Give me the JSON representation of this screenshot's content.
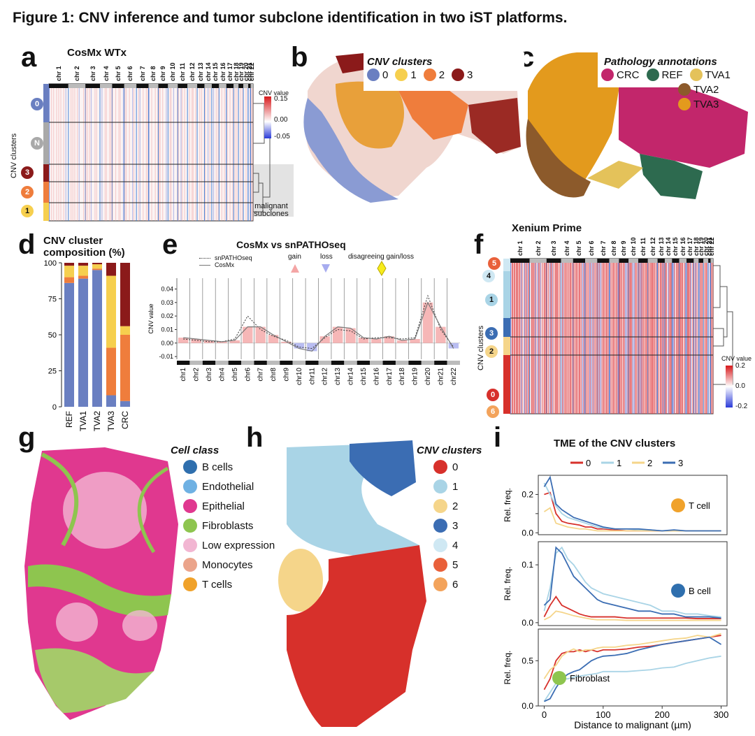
{
  "figure_title": "Figure 1: CNV inference and tumor subclone identification in two iST platforms.",
  "panel_labels": [
    "a",
    "b",
    "c",
    "d",
    "e",
    "f",
    "g",
    "h",
    "i"
  ],
  "panel_a": {
    "title": "CosMx WTx",
    "y_axis_label": "CNV clusters",
    "chromosomes": [
      "chr 1",
      "chr 2",
      "chr 3",
      "chr 4",
      "chr 5",
      "chr 6",
      "chr 7",
      "chr 8",
      "chr 9",
      "chr 10",
      "chr 11",
      "chr 12",
      "chr 13",
      "chr 14",
      "chr 15",
      "chr 16",
      "chr 17",
      "chr 18",
      "chr 19",
      "chr 20",
      "chr 21",
      "chr 22"
    ],
    "row_clusters": [
      {
        "label": "0",
        "color": "#6a7fc1"
      },
      {
        "label": "N",
        "color": "#a9a9a9"
      },
      {
        "label": "3",
        "color": "#8b1a1a"
      },
      {
        "label": "2",
        "color": "#ef7d3c"
      },
      {
        "label": "1",
        "color": "#f6cf4e"
      }
    ],
    "colorbar_title": "CNV value",
    "colorbar_ticks": [
      "0.15",
      "0.00",
      "-0.05"
    ],
    "annotation": "malignant subclones"
  },
  "panel_b": {
    "legend_title": "CNV clusters",
    "legend": [
      {
        "label": "0",
        "color": "#6a7fc1"
      },
      {
        "label": "1",
        "color": "#f6cf4e"
      },
      {
        "label": "2",
        "color": "#ef7d3c"
      },
      {
        "label": "3",
        "color": "#8b1a1a"
      }
    ]
  },
  "panel_c": {
    "legend_title": "Pathology annotations",
    "legend": [
      {
        "label": "CRC",
        "color": "#c2266b"
      },
      {
        "label": "REF",
        "color": "#2d6a4f"
      },
      {
        "label": "TVA1",
        "color": "#e4c25a"
      },
      {
        "label": "TVA2",
        "color": "#8c5a2b"
      },
      {
        "label": "TVA3",
        "color": "#e39a1d"
      }
    ]
  },
  "panel_e": {
    "title": "CosMx vs snPATHOseq",
    "legend_dotted": "snPATHOseq",
    "legend_solid": "CosMx",
    "gain_label": "gain",
    "loss_label": "loss",
    "disagree_label": "disagreeing gain/loss",
    "y_label": "CNV value",
    "chromosomes": [
      "chr1",
      "chr2",
      "chr3",
      "chr4",
      "chr5",
      "chr6",
      "chr7",
      "chr8",
      "chr9",
      "chr10",
      "chr11",
      "chr12",
      "chr13",
      "chr14",
      "chr15",
      "chr16",
      "chr17",
      "chr18",
      "chr19",
      "chr20",
      "chr21",
      "chr22"
    ]
  },
  "panel_f": {
    "title": "Xenium Prime",
    "y_axis_label": "CNV clusters",
    "chromosomes": [
      "chr 1",
      "chr 2",
      "chr 3",
      "chr 4",
      "chr 5",
      "chr 6",
      "chr 7",
      "chr 8",
      "chr 9",
      "chr 10",
      "chr 11",
      "chr 12",
      "chr 13",
      "chr 14",
      "chr 15",
      "chr 16",
      "chr 17",
      "chr 18",
      "chr 19",
      "chr 20",
      "chr 21",
      "chr 22"
    ],
    "row_clusters": [
      {
        "label": "5",
        "color": "#e9603a"
      },
      {
        "label": "4",
        "color": "#cfe8f3"
      },
      {
        "label": "1",
        "color": "#a9d4e6"
      },
      {
        "label": "3",
        "color": "#3b6db3"
      },
      {
        "label": "2",
        "color": "#f5d58a"
      },
      {
        "label": "0",
        "color": "#d7302b"
      },
      {
        "label": "6",
        "color": "#f3a35b"
      }
    ],
    "colorbar_title": "CNV value",
    "colorbar_ticks": [
      "0.2",
      "0.0",
      "-0.2"
    ]
  },
  "panel_g": {
    "legend_title": "Cell class",
    "legend": [
      {
        "label": "B cells",
        "color": "#2f6fae"
      },
      {
        "label": "Endothelial",
        "color": "#6fb1e3"
      },
      {
        "label": "Epithelial",
        "color": "#e0388f"
      },
      {
        "label": "Fibroblasts",
        "color": "#8ec54f"
      },
      {
        "label": "Low expression",
        "color": "#f2b6d2"
      },
      {
        "label": "Monocytes",
        "color": "#eba48b"
      },
      {
        "label": "T cells",
        "color": "#f0a22b"
      }
    ]
  },
  "panel_h": {
    "legend_title": "CNV clusters",
    "legend": [
      {
        "label": "0",
        "color": "#d7302b"
      },
      {
        "label": "1",
        "color": "#a9d4e6"
      },
      {
        "label": "2",
        "color": "#f5d58a"
      },
      {
        "label": "3",
        "color": "#3b6db3"
      },
      {
        "label": "4",
        "color": "#cfe8f3"
      },
      {
        "label": "5",
        "color": "#e9603a"
      },
      {
        "label": "6",
        "color": "#f3a35b"
      }
    ]
  },
  "chart_data": [
    {
      "id": "panel_d",
      "type": "bar",
      "title": "CNV cluster composition (%)",
      "title_lines": [
        "CNV cluster",
        "composition (%)"
      ],
      "stacked": true,
      "categories": [
        "REF",
        "TVA1",
        "TVA2",
        "TVA3",
        "CRC"
      ],
      "series": [
        {
          "name": "0",
          "color": "#6a7fc1",
          "values": [
            86,
            89,
            95,
            8,
            4
          ]
        },
        {
          "name": "2",
          "color": "#ef7d3c",
          "values": [
            4,
            2,
            1,
            33,
            46
          ]
        },
        {
          "name": "1",
          "color": "#f6cf4e",
          "values": [
            8,
            7,
            3,
            50,
            6
          ]
        },
        {
          "name": "3",
          "color": "#8b1a1a",
          "values": [
            2,
            2,
            1,
            9,
            44
          ]
        }
      ],
      "ylim": [
        0,
        100
      ],
      "yticks": [
        0,
        25,
        50,
        75,
        100
      ]
    },
    {
      "id": "panel_e",
      "type": "line",
      "title": "CosMx vs snPATHOseq",
      "ylabel": "CNV value",
      "ylim": [
        -0.012,
        0.048
      ],
      "yticks": [
        -0.01,
        0.0,
        0.01,
        0.02,
        0.03,
        0.04
      ],
      "ytick_labels": [
        "-0.01",
        "0.00",
        "0.01",
        "0.02",
        "0.03",
        "0.04"
      ],
      "categories": [
        "chr1",
        "chr2",
        "chr3",
        "chr4",
        "chr5",
        "chr6",
        "chr7",
        "chr8",
        "chr9",
        "chr10",
        "chr11",
        "chr12",
        "chr13",
        "chr14",
        "chr15",
        "chr16",
        "chr17",
        "chr18",
        "chr19",
        "chr20",
        "chr21",
        "chr22"
      ],
      "series": [
        {
          "name": "CosMx",
          "values": [
            0.004,
            0.003,
            0.002,
            0.001,
            0.002,
            0.012,
            0.012,
            0.006,
            0.001,
            -0.004,
            -0.006,
            0.005,
            0.012,
            0.011,
            0.004,
            0.003,
            0.005,
            0.002,
            0.003,
            0.03,
            0.012,
            -0.004
          ]
        },
        {
          "name": "snPATHOseq",
          "values": [
            0.003,
            0.002,
            0.001,
            0.001,
            0.003,
            0.02,
            0.01,
            0.005,
            0.002,
            -0.003,
            -0.004,
            0.004,
            0.01,
            0.009,
            0.003,
            0.004,
            0.004,
            0.003,
            0.004,
            0.035,
            0.01,
            -0.003
          ]
        }
      ]
    },
    {
      "id": "panel_i",
      "type": "line",
      "title": "TME of the CNV clusters",
      "xlabel": "Distance to malignant (µm)",
      "x": [
        0,
        10,
        20,
        30,
        40,
        50,
        60,
        70,
        80,
        90,
        100,
        120,
        140,
        160,
        180,
        200,
        220,
        240,
        260,
        280,
        300
      ],
      "xticks": [
        0,
        100,
        200,
        300
      ],
      "legend": [
        {
          "name": "0",
          "color": "#d7302b"
        },
        {
          "name": "1",
          "color": "#a9d4e6"
        },
        {
          "name": "2",
          "color": "#f5d58a"
        },
        {
          "name": "3",
          "color": "#3b6db3"
        }
      ],
      "subplots": [
        {
          "label": "T cell",
          "marker_color": "#f0a22b",
          "ylabel": "Rel. freq.",
          "ylim": [
            -0.01,
            0.3
          ],
          "yticks": [
            0.0,
            0.1,
            0.2
          ],
          "ytick_labels": [
            "0.0",
            "",
            "0.2"
          ],
          "series": [
            {
              "name": "0",
              "values": [
                0.2,
                0.21,
                0.1,
                0.06,
                0.05,
                0.045,
                0.04,
                0.03,
                0.03,
                0.02,
                0.02,
                0.015,
                0.01,
                0.01,
                0.01,
                0.01,
                0.01,
                0.01,
                0.01,
                0.01,
                0.01
              ]
            },
            {
              "name": "1",
              "values": [
                0.26,
                0.2,
                0.14,
                0.1,
                0.08,
                0.07,
                0.06,
                0.05,
                0.04,
                0.03,
                0.025,
                0.02,
                0.02,
                0.015,
                0.015,
                0.01,
                0.01,
                0.01,
                0.01,
                0.01,
                0.01
              ]
            },
            {
              "name": "2",
              "values": [
                0.11,
                0.13,
                0.05,
                0.04,
                0.03,
                0.025,
                0.02,
                0.02,
                0.015,
                0.01,
                0.01,
                0.01,
                0.01,
                0.01,
                0.01,
                0.01,
                0.01,
                0.01,
                0.01,
                0.01,
                0.01
              ]
            },
            {
              "name": "3",
              "values": [
                0.24,
                0.29,
                0.15,
                0.12,
                0.1,
                0.08,
                0.07,
                0.06,
                0.05,
                0.04,
                0.03,
                0.02,
                0.02,
                0.02,
                0.015,
                0.01,
                0.015,
                0.01,
                0.01,
                0.01,
                0.01
              ]
            }
          ]
        },
        {
          "label": "B cell",
          "marker_color": "#2f6fae",
          "ylabel": "Rel. freq.",
          "ylim": [
            -0.005,
            0.14
          ],
          "yticks": [
            0.0,
            0.1
          ],
          "ytick_labels": [
            "0.0",
            "0.1"
          ],
          "series": [
            {
              "name": "0",
              "values": [
                0.01,
                0.03,
                0.045,
                0.03,
                0.025,
                0.02,
                0.015,
                0.012,
                0.01,
                0.01,
                0.01,
                0.01,
                0.008,
                0.008,
                0.008,
                0.008,
                0.008,
                0.008,
                0.007,
                0.007,
                0.007
              ]
            },
            {
              "name": "1",
              "values": [
                0.02,
                0.06,
                0.12,
                0.13,
                0.11,
                0.1,
                0.085,
                0.07,
                0.06,
                0.055,
                0.05,
                0.045,
                0.04,
                0.035,
                0.03,
                0.02,
                0.02,
                0.015,
                0.015,
                0.012,
                0.01
              ]
            },
            {
              "name": "2",
              "values": [
                0.005,
                0.01,
                0.02,
                0.018,
                0.015,
                0.012,
                0.01,
                0.008,
                0.006,
                0.005,
                0.005,
                0.005,
                0.004,
                0.004,
                0.004,
                0.004,
                0.004,
                0.004,
                0.004,
                0.004,
                0.004
              ]
            },
            {
              "name": "3",
              "values": [
                0.03,
                0.04,
                0.13,
                0.12,
                0.1,
                0.08,
                0.07,
                0.06,
                0.05,
                0.04,
                0.035,
                0.03,
                0.025,
                0.02,
                0.02,
                0.015,
                0.015,
                0.01,
                0.01,
                0.01,
                0.008
              ]
            }
          ]
        },
        {
          "label": "Fibroblast",
          "marker_color": "#8ec54f",
          "ylabel": "Rel. freq.",
          "ylim": [
            0.0,
            0.85
          ],
          "yticks": [
            0.0,
            0.5
          ],
          "ytick_labels": [
            "0.0",
            "0.5"
          ],
          "series": [
            {
              "name": "0",
              "values": [
                0.18,
                0.3,
                0.5,
                0.58,
                0.6,
                0.6,
                0.62,
                0.6,
                0.62,
                0.6,
                0.62,
                0.62,
                0.63,
                0.65,
                0.66,
                0.68,
                0.7,
                0.72,
                0.74,
                0.76,
                0.78
              ]
            },
            {
              "name": "1",
              "values": [
                0.05,
                0.15,
                0.25,
                0.3,
                0.3,
                0.32,
                0.33,
                0.34,
                0.35,
                0.36,
                0.38,
                0.38,
                0.38,
                0.39,
                0.4,
                0.42,
                0.43,
                0.47,
                0.5,
                0.53,
                0.55
              ]
            },
            {
              "name": "2",
              "values": [
                0.3,
                0.4,
                0.45,
                0.55,
                0.6,
                0.63,
                0.6,
                0.62,
                0.62,
                0.64,
                0.65,
                0.65,
                0.67,
                0.68,
                0.7,
                0.72,
                0.74,
                0.75,
                0.78,
                0.76,
                0.8
              ]
            },
            {
              "name": "3",
              "values": [
                0.05,
                0.08,
                0.2,
                0.3,
                0.35,
                0.38,
                0.4,
                0.45,
                0.5,
                0.53,
                0.55,
                0.56,
                0.58,
                0.62,
                0.65,
                0.68,
                0.7,
                0.72,
                0.74,
                0.76,
                0.68
              ]
            }
          ]
        }
      ]
    }
  ]
}
